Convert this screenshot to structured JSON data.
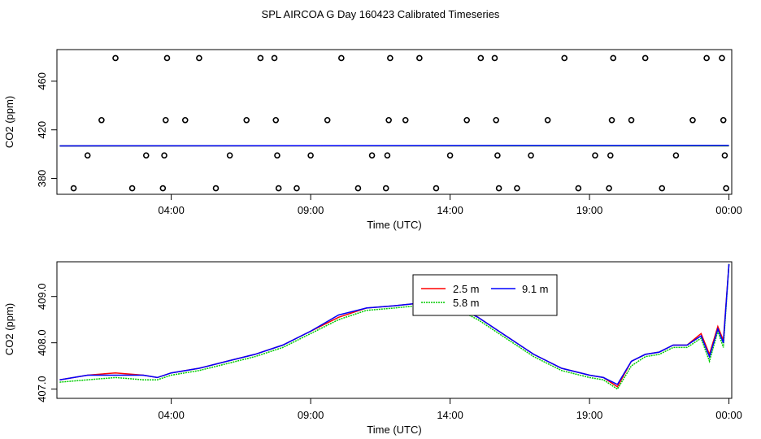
{
  "page_title": "SPL AIRCOA G  Day 160423  Calibrated Timeseries",
  "chart_data": [
    {
      "type": "scatter",
      "xlabel": "Time (UTC)",
      "ylabel": "CO2 (ppm)",
      "x_ticks": [
        "04:00",
        "09:00",
        "14:00",
        "19:00",
        "00:00"
      ],
      "x_tick_hours": [
        4,
        9,
        14,
        19,
        24
      ],
      "xlim_hours": [
        -0.1,
        24.1
      ],
      "y_ticks": [
        380,
        420,
        460
      ],
      "ylim": [
        367,
        486
      ],
      "calibration_points_hours": [
        [
          0.5,
          372
        ],
        [
          1.0,
          399
        ],
        [
          1.5,
          428
        ],
        [
          2.0,
          479
        ],
        [
          2.6,
          372
        ],
        [
          3.1,
          399
        ],
        [
          3.7,
          372
        ],
        [
          3.75,
          399
        ],
        [
          3.8,
          428
        ],
        [
          3.85,
          479
        ],
        [
          4.5,
          428
        ],
        [
          5.0,
          479
        ],
        [
          5.6,
          372
        ],
        [
          6.1,
          399
        ],
        [
          6.7,
          428
        ],
        [
          7.2,
          479
        ],
        [
          7.7,
          479
        ],
        [
          7.75,
          428
        ],
        [
          7.8,
          399
        ],
        [
          7.85,
          372
        ],
        [
          8.5,
          372
        ],
        [
          9.0,
          399
        ],
        [
          9.6,
          428
        ],
        [
          10.1,
          479
        ],
        [
          10.7,
          372
        ],
        [
          11.2,
          399
        ],
        [
          11.75,
          399
        ],
        [
          11.8,
          428
        ],
        [
          11.85,
          479
        ],
        [
          11.7,
          372
        ],
        [
          12.4,
          428
        ],
        [
          12.9,
          479
        ],
        [
          13.5,
          372
        ],
        [
          14.0,
          399
        ],
        [
          14.6,
          428
        ],
        [
          15.1,
          479
        ],
        [
          15.6,
          479
        ],
        [
          15.65,
          428
        ],
        [
          15.7,
          399
        ],
        [
          15.75,
          372
        ],
        [
          16.4,
          372
        ],
        [
          16.9,
          399
        ],
        [
          17.5,
          428
        ],
        [
          18.1,
          479
        ],
        [
          18.6,
          372
        ],
        [
          19.2,
          399
        ],
        [
          19.7,
          372
        ],
        [
          19.75,
          399
        ],
        [
          19.8,
          428
        ],
        [
          19.85,
          479
        ],
        [
          20.5,
          428
        ],
        [
          21.0,
          479
        ],
        [
          21.6,
          372
        ],
        [
          22.1,
          399
        ],
        [
          22.7,
          428
        ],
        [
          23.2,
          479
        ],
        [
          23.75,
          479
        ],
        [
          23.8,
          428
        ],
        [
          23.85,
          399
        ],
        [
          23.9,
          372
        ]
      ],
      "series": [
        {
          "color": "#ff0000",
          "y_start": 406.8,
          "y_end": 406.9
        },
        {
          "color": "#00cc00",
          "y_start": 406.8,
          "y_end": 406.9
        },
        {
          "color": "#0000ff",
          "y_start": 406.8,
          "y_end": 407.2
        }
      ]
    },
    {
      "type": "line",
      "xlabel": "Time (UTC)",
      "ylabel": "CO2 (ppm)",
      "x_ticks": [
        "04:00",
        "09:00",
        "14:00",
        "19:00",
        "00:00"
      ],
      "x_tick_hours": [
        4,
        9,
        14,
        19,
        24
      ],
      "xlim_hours": [
        -0.1,
        24.1
      ],
      "y_ticks": [
        "407.0",
        "408.0",
        "409.0"
      ],
      "y_tick_values": [
        407.0,
        408.0,
        409.0
      ],
      "ylim": [
        406.8,
        409.75
      ],
      "legend": {
        "position": "top-center",
        "entries": [
          {
            "label": "2.5 m",
            "color": "#ff0000"
          },
          {
            "label": "9.1 m",
            "color": "#0000ff"
          },
          {
            "label": "5.8 m",
            "color": "#00cc00"
          }
        ]
      },
      "x_hours": [
        0.0,
        1.0,
        2.0,
        3.0,
        3.5,
        4.0,
        5.0,
        6.0,
        7.0,
        8.0,
        9.0,
        10.0,
        11.0,
        12.0,
        12.8,
        13.5,
        14.0,
        14.5,
        15.0,
        16.0,
        17.0,
        18.0,
        19.0,
        19.5,
        20.0,
        20.5,
        21.0,
        21.5,
        22.0,
        22.5,
        23.0,
        23.3,
        23.6,
        23.8,
        24.0
      ],
      "series": [
        {
          "name": "2.5 m",
          "color": "#ff0000",
          "values": [
            407.2,
            407.3,
            407.35,
            407.3,
            407.25,
            407.35,
            407.45,
            407.6,
            407.75,
            407.95,
            408.25,
            408.55,
            408.75,
            408.8,
            408.85,
            408.75,
            408.8,
            408.7,
            408.55,
            408.15,
            407.75,
            407.45,
            407.3,
            407.25,
            407.05,
            407.6,
            407.75,
            407.8,
            407.95,
            407.95,
            408.2,
            407.75,
            408.35,
            408.05,
            409.7
          ]
        },
        {
          "name": "5.8 m",
          "color": "#00cc00",
          "values": [
            407.15,
            407.2,
            407.25,
            407.2,
            407.2,
            407.3,
            407.4,
            407.55,
            407.7,
            407.9,
            408.2,
            408.5,
            408.7,
            408.75,
            408.8,
            408.7,
            408.75,
            408.65,
            408.5,
            408.1,
            407.7,
            407.4,
            407.25,
            407.2,
            407.0,
            407.5,
            407.7,
            407.75,
            407.9,
            407.9,
            408.1,
            407.6,
            408.25,
            407.9,
            409.7
          ]
        },
        {
          "name": "9.1 m",
          "color": "#0000ff",
          "values": [
            407.2,
            407.3,
            407.3,
            407.3,
            407.25,
            407.35,
            407.45,
            407.6,
            407.75,
            407.95,
            408.25,
            408.6,
            408.75,
            408.8,
            408.85,
            408.75,
            408.8,
            408.7,
            408.55,
            408.15,
            407.75,
            407.45,
            407.3,
            407.25,
            407.1,
            407.6,
            407.75,
            407.8,
            407.95,
            407.95,
            408.15,
            407.7,
            408.3,
            408.0,
            409.7
          ]
        }
      ]
    }
  ]
}
